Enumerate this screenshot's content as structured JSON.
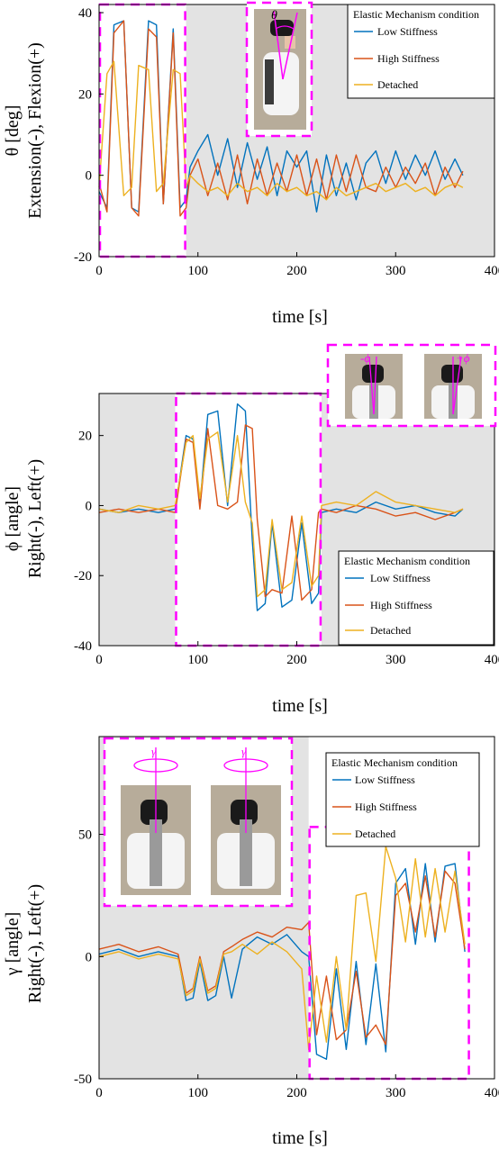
{
  "colors": {
    "low": "#0072BD",
    "high": "#D95319",
    "detached": "#EDB120",
    "highlight": "#FF00FF",
    "shade": "#E3E3E3",
    "photo_bg": "#B7AC9A",
    "suit": "#F4F4F4"
  },
  "chart_data": [
    {
      "type": "line",
      "xlabel": "time [s]",
      "ylabel_line1": "θ [deg]",
      "ylabel_line2": "Extension(-), Flexion(+)",
      "xlim": [
        0,
        400
      ],
      "ylim": [
        -20,
        42
      ],
      "xticks": [
        0,
        100,
        200,
        300,
        400
      ],
      "yticks": [
        -20,
        0,
        20,
        40
      ],
      "grid": false,
      "legend_title": "Elastic Mechanism condition",
      "legend_position": "top-right",
      "shaded_region": [
        88,
        400
      ],
      "highlight_region": [
        0,
        88
      ],
      "photo_angle_label": "θ",
      "series": [
        {
          "name": "Low Stiffness",
          "color": "#0072BD",
          "x": [
            0,
            8,
            15,
            25,
            33,
            40,
            50,
            58,
            65,
            75,
            82,
            88,
            92,
            100,
            110,
            120,
            130,
            140,
            150,
            160,
            170,
            180,
            190,
            200,
            210,
            220,
            230,
            240,
            250,
            260,
            270,
            280,
            290,
            300,
            310,
            320,
            330,
            340,
            350,
            360,
            368
          ],
          "y": [
            -4,
            -8,
            37,
            38,
            -8,
            -9,
            38,
            37,
            -7,
            36,
            -8,
            -6,
            2,
            6,
            10,
            0,
            9,
            -3,
            8,
            -1,
            7,
            -5,
            6,
            2,
            6,
            -9,
            5,
            -5,
            3,
            -6,
            3,
            6,
            -2,
            6,
            -1,
            5,
            0,
            6,
            -1,
            4,
            0
          ]
        },
        {
          "name": "High Stiffness",
          "color": "#D95319",
          "x": [
            0,
            8,
            15,
            25,
            33,
            40,
            50,
            58,
            65,
            75,
            82,
            88,
            92,
            100,
            110,
            120,
            130,
            140,
            150,
            160,
            170,
            180,
            190,
            200,
            210,
            220,
            230,
            240,
            250,
            260,
            270,
            280,
            290,
            300,
            310,
            320,
            330,
            340,
            350,
            360,
            368
          ],
          "y": [
            -2,
            -9,
            35,
            38,
            -8,
            -10,
            36,
            34,
            -7,
            35,
            -10,
            -8,
            0,
            4,
            -5,
            3,
            -6,
            5,
            -7,
            4,
            -5,
            3,
            -4,
            5,
            -5,
            4,
            -6,
            5,
            -4,
            5,
            -3,
            -4,
            2,
            -3,
            2,
            -2,
            3,
            -5,
            2,
            -3,
            1
          ]
        },
        {
          "name": "Detached",
          "color": "#EDB120",
          "x": [
            0,
            8,
            15,
            25,
            33,
            40,
            50,
            58,
            65,
            75,
            82,
            88,
            92,
            100,
            110,
            120,
            130,
            140,
            150,
            160,
            170,
            180,
            190,
            200,
            210,
            220,
            230,
            240,
            250,
            260,
            270,
            280,
            290,
            300,
            310,
            320,
            330,
            340,
            350,
            360,
            368
          ],
          "y": [
            -3,
            25,
            28,
            -5,
            -3,
            27,
            26,
            -4,
            -2,
            26,
            25,
            -3,
            0,
            -2,
            -4,
            -3,
            -5,
            -2,
            -4,
            -3,
            -5,
            -2,
            -4,
            -3,
            -5,
            -4,
            -6,
            -3,
            -5,
            -4,
            -3,
            -2,
            -4,
            -3,
            -2,
            -4,
            -3,
            -5,
            -3,
            -2,
            -3
          ]
        }
      ]
    },
    {
      "type": "line",
      "xlabel": "time [s]",
      "ylabel_line1": "ϕ [angle]",
      "ylabel_line2": "Right(-), Left(+)",
      "xlim": [
        0,
        400
      ],
      "ylim": [
        -40,
        32
      ],
      "xticks": [
        0,
        100,
        200,
        300,
        400
      ],
      "yticks": [
        -40,
        -20,
        0,
        20
      ],
      "grid": false,
      "legend_title": "Elastic Mechanism condition",
      "legend_position": "bottom-right",
      "shaded_regions": [
        [
          0,
          77
        ],
        [
          225,
          400
        ]
      ],
      "highlight_region": [
        77,
        225
      ],
      "photo_angle_labels": [
        "-ϕ",
        "+ϕ"
      ],
      "series": [
        {
          "name": "Low Stiffness",
          "color": "#0072BD",
          "x": [
            0,
            20,
            40,
            60,
            77,
            88,
            95,
            102,
            110,
            120,
            130,
            140,
            148,
            155,
            160,
            168,
            175,
            185,
            195,
            205,
            215,
            222,
            225,
            240,
            260,
            280,
            300,
            320,
            340,
            360,
            368
          ],
          "y": [
            -1,
            -2,
            -1,
            -2,
            -1,
            20,
            19,
            0,
            26,
            27,
            0,
            29,
            27,
            -10,
            -30,
            -28,
            -5,
            -29,
            -27,
            -5,
            -28,
            -25,
            -2,
            -1,
            -2,
            1,
            -1,
            0,
            -2,
            -3,
            -1
          ]
        },
        {
          "name": "High Stiffness",
          "color": "#D95319",
          "x": [
            0,
            20,
            40,
            60,
            77,
            88,
            95,
            102,
            110,
            120,
            130,
            140,
            148,
            155,
            160,
            168,
            175,
            185,
            195,
            205,
            215,
            222,
            225,
            240,
            260,
            280,
            300,
            320,
            340,
            360,
            368
          ],
          "y": [
            -2,
            -1,
            -2,
            -1,
            -2,
            19,
            18,
            -1,
            22,
            0,
            -1,
            1,
            23,
            22,
            -4,
            -26,
            -24,
            -25,
            -3,
            -27,
            -24,
            -2,
            -1,
            -2,
            0,
            -1,
            -3,
            -2,
            -4,
            -2,
            -1
          ]
        },
        {
          "name": "Detached",
          "color": "#EDB120",
          "x": [
            0,
            20,
            40,
            60,
            77,
            88,
            95,
            102,
            110,
            120,
            130,
            140,
            148,
            155,
            160,
            168,
            175,
            185,
            195,
            205,
            215,
            222,
            225,
            240,
            260,
            280,
            300,
            320,
            340,
            360,
            368
          ],
          "y": [
            -1,
            -2,
            0,
            -1,
            0,
            18,
            20,
            2,
            19,
            21,
            1,
            20,
            1,
            -5,
            -26,
            -24,
            -4,
            -24,
            -22,
            -3,
            -23,
            -20,
            0,
            1,
            0,
            4,
            1,
            0,
            -1,
            -2,
            -1
          ]
        }
      ]
    },
    {
      "type": "line",
      "xlabel": "time [s]",
      "ylabel_line1": "γ [angle]",
      "ylabel_line2": "Right(-), Left(+)",
      "xlim": [
        0,
        400
      ],
      "ylim": [
        -50,
        90
      ],
      "xticks": [
        0,
        100,
        200,
        300,
        400
      ],
      "yticks": [
        -50,
        0,
        50
      ],
      "grid": false,
      "legend_title": "Elastic Mechanism condition",
      "legend_position": "top-right",
      "shaded_region": [
        0,
        212
      ],
      "highlight_region": [
        212,
        375
      ],
      "photo_angle_labels": [
        "γ",
        "γ"
      ],
      "series": [
        {
          "name": "Low Stiffness",
          "color": "#0072BD",
          "x": [
            0,
            20,
            40,
            60,
            80,
            88,
            95,
            102,
            110,
            118,
            126,
            134,
            145,
            160,
            175,
            190,
            205,
            212,
            220,
            230,
            240,
            250,
            260,
            270,
            280,
            290,
            300,
            310,
            320,
            330,
            340,
            350,
            360,
            370
          ],
          "y": [
            1,
            3,
            0,
            2,
            0,
            -18,
            -17,
            -2,
            -18,
            -16,
            0,
            -17,
            3,
            8,
            5,
            9,
            2,
            0,
            -40,
            -42,
            -5,
            -38,
            -2,
            -36,
            -3,
            -39,
            30,
            36,
            5,
            38,
            6,
            37,
            38,
            2
          ]
        },
        {
          "name": "High Stiffness",
          "color": "#D95319",
          "x": [
            0,
            20,
            40,
            60,
            80,
            88,
            95,
            102,
            110,
            118,
            126,
            134,
            145,
            160,
            175,
            190,
            205,
            212,
            220,
            230,
            240,
            250,
            260,
            270,
            280,
            290,
            300,
            310,
            320,
            330,
            340,
            350,
            360,
            370
          ],
          "y": [
            3,
            5,
            2,
            4,
            1,
            -15,
            -13,
            0,
            -14,
            -12,
            2,
            4,
            7,
            10,
            8,
            12,
            11,
            14,
            -32,
            -8,
            -34,
            -30,
            -6,
            -33,
            -28,
            -36,
            25,
            30,
            10,
            33,
            8,
            35,
            30,
            3
          ]
        },
        {
          "name": "Detached",
          "color": "#EDB120",
          "x": [
            0,
            20,
            40,
            60,
            80,
            88,
            95,
            102,
            110,
            118,
            126,
            134,
            145,
            160,
            175,
            190,
            205,
            212,
            220,
            230,
            240,
            250,
            260,
            270,
            280,
            290,
            300,
            310,
            320,
            330,
            340,
            350,
            360,
            370
          ],
          "y": [
            0,
            2,
            -1,
            1,
            -1,
            -16,
            -14,
            -1,
            -15,
            -13,
            1,
            2,
            5,
            1,
            6,
            2,
            -5,
            -38,
            -8,
            -35,
            0,
            -30,
            25,
            26,
            -2,
            45,
            32,
            6,
            40,
            8,
            36,
            10,
            35,
            5
          ]
        }
      ]
    }
  ]
}
